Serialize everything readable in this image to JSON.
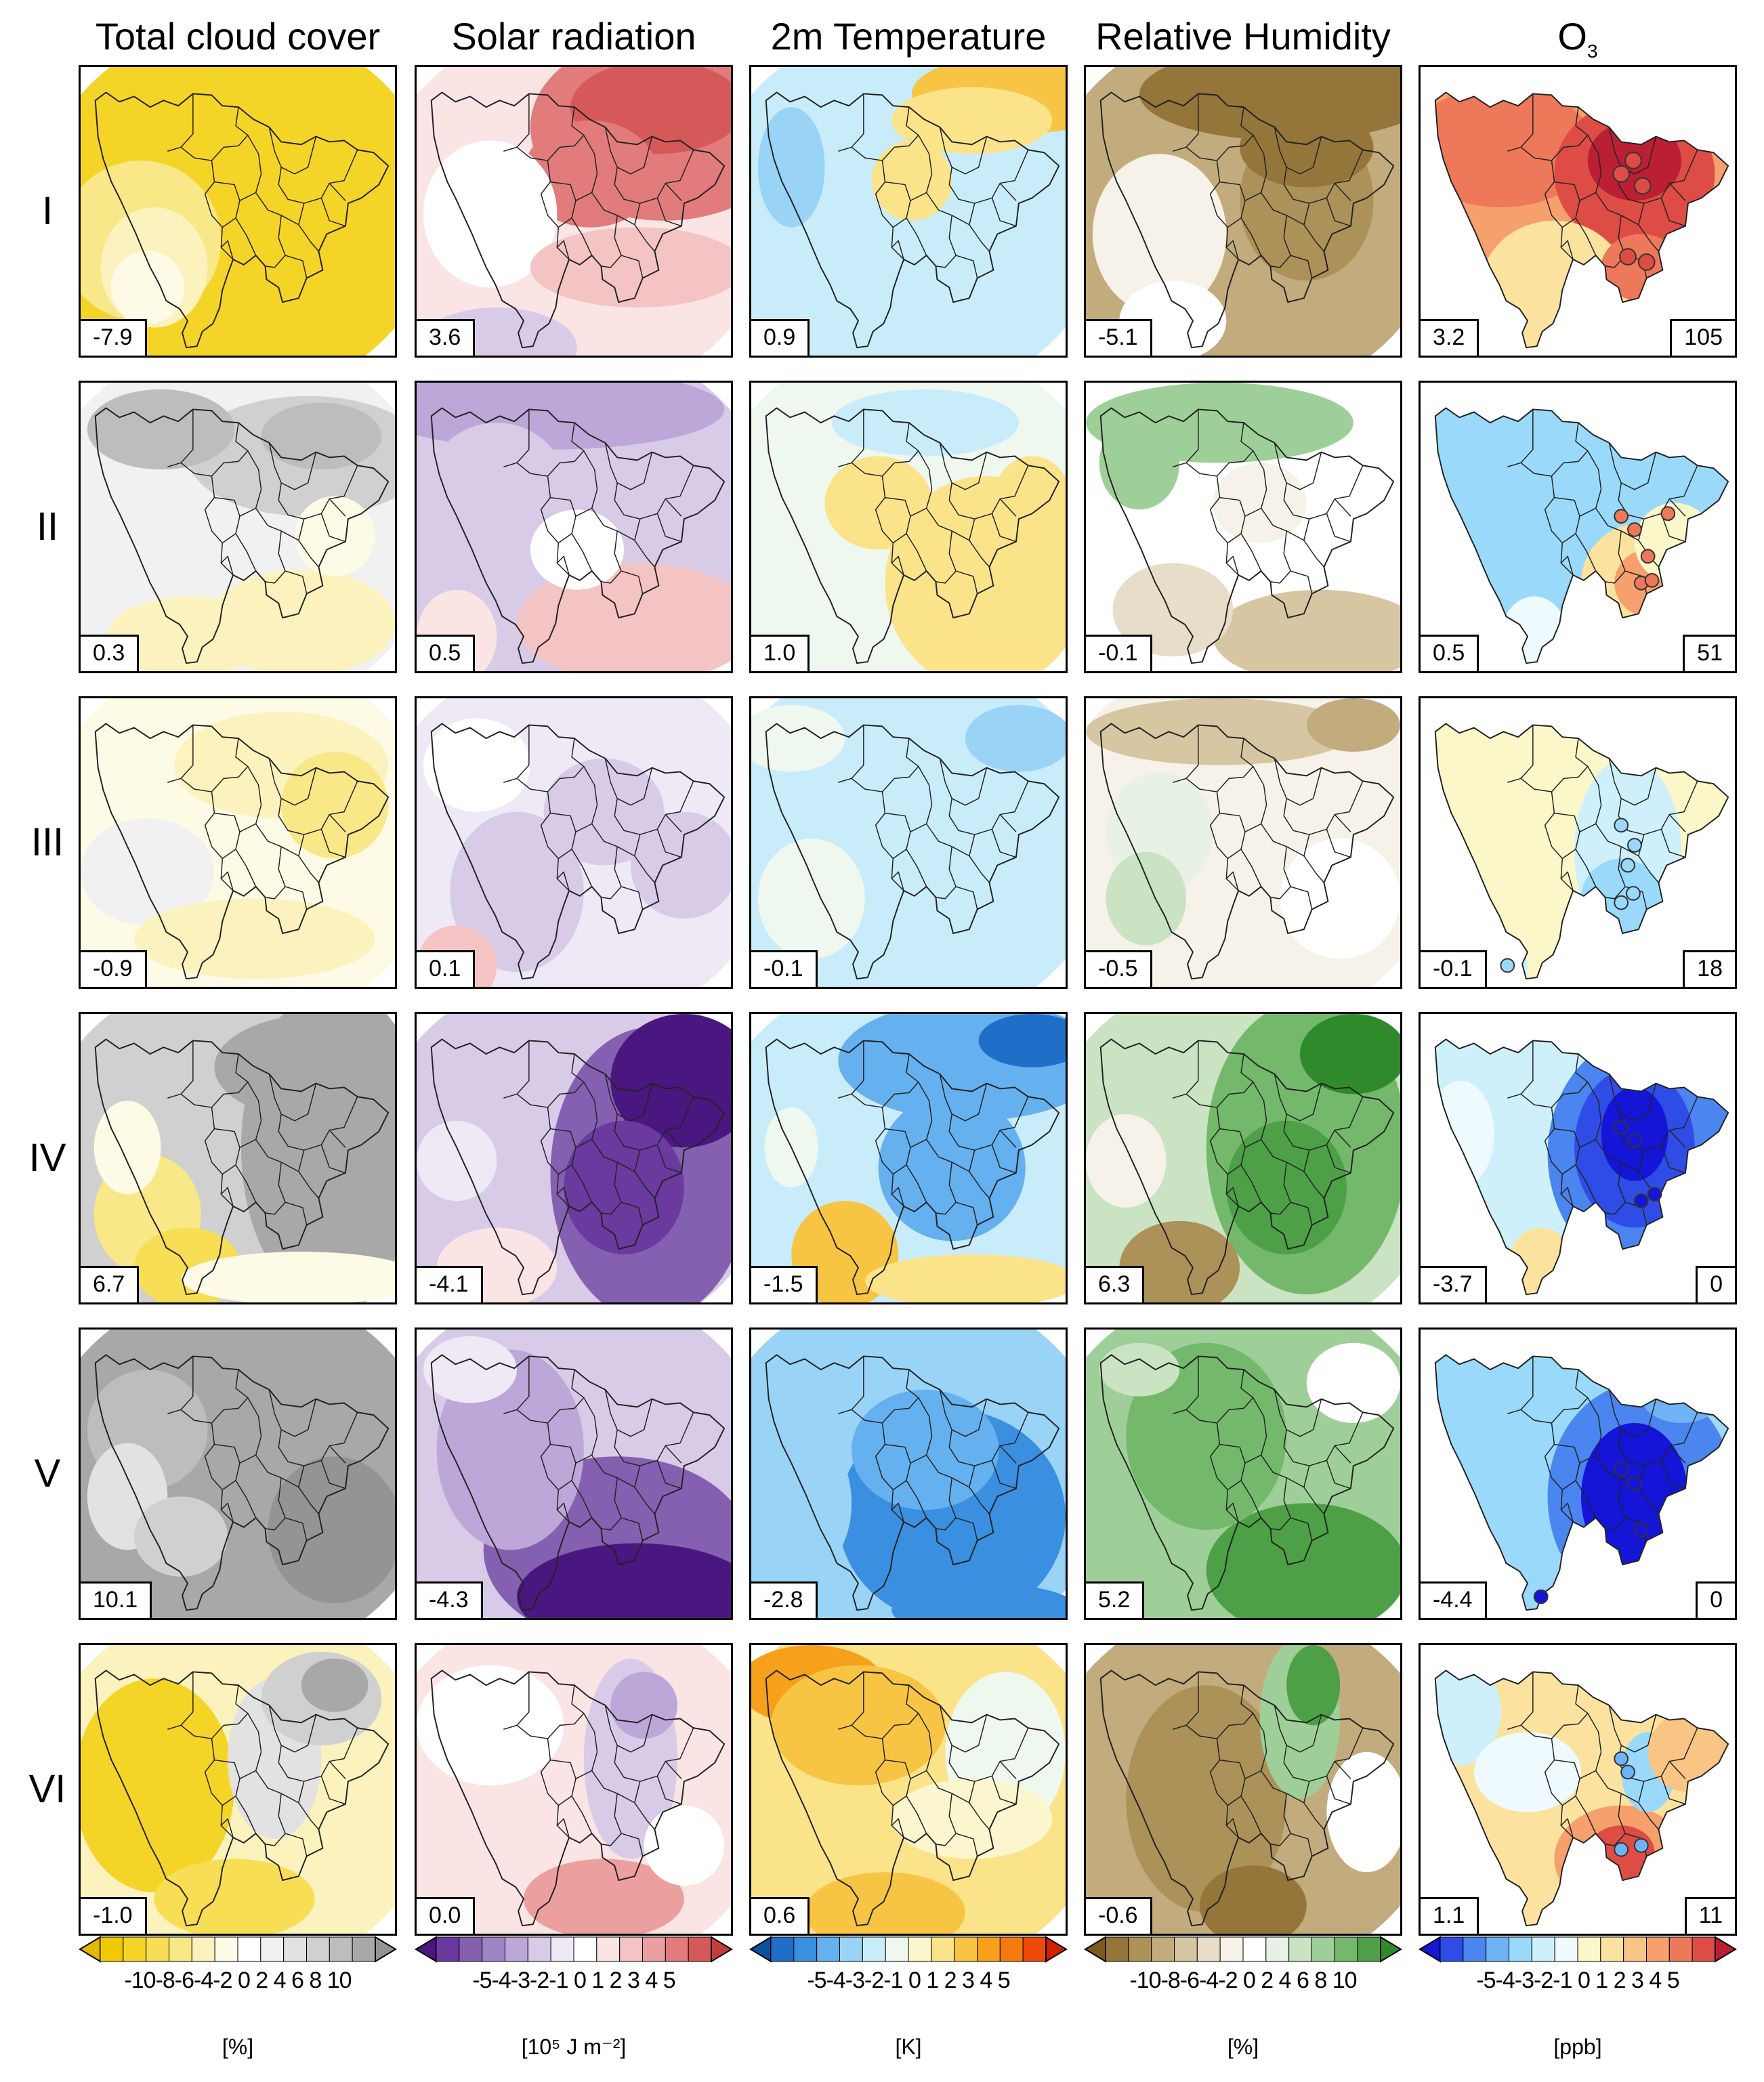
{
  "columns": [
    {
      "id": "tcc",
      "title": "Total cloud cover",
      "title_sub": "",
      "unit": "[%]",
      "ticks": "-10-8-6-4-2 0 2 4 6 8 10",
      "colors": [
        "#e6b800",
        "#f2c900",
        "#f5d428",
        "#f7de55",
        "#f9e888",
        "#fbf2bd",
        "#fdfae6",
        "#ffffff",
        "#f1f1f1",
        "#e2e2e2",
        "#d0d0d0",
        "#bdbdbd",
        "#a8a8a8",
        "#949494"
      ]
    },
    {
      "id": "ssr",
      "title": "Solar radiation",
      "title_sub": "",
      "unit": "[10⁵ J m⁻²]",
      "ticks": "-5-4-3-2-1 0 1 2 3 4 5",
      "colors": [
        "#4a1780",
        "#6a3a9e",
        "#8560b0",
        "#a083c4",
        "#bca7d8",
        "#d7cbe8",
        "#eee9f5",
        "#ffffff",
        "#fbe4e4",
        "#f4c3c3",
        "#ec9f9f",
        "#e27b7b",
        "#d65959",
        "#c43c3c"
      ]
    },
    {
      "id": "t2m",
      "title": "2m Temperature",
      "title_sub": "",
      "unit": "[K]",
      "ticks": "-5-4-3-2-1 0 1 2 3 4 5",
      "colors": [
        "#08519c",
        "#1f6fc8",
        "#3a8fe0",
        "#65b0ee",
        "#99d3f6",
        "#c9ecfa",
        "#eef8ef",
        "#fbf6cd",
        "#fbe38a",
        "#f8c443",
        "#f7a01c",
        "#f57b10",
        "#ee4a0a",
        "#d42004"
      ]
    },
    {
      "id": "rh",
      "title": "Relative Humidity",
      "title_sub": "",
      "unit": "[%]",
      "ticks": "-10-8-6-4-2 0 2 4 6 8 10",
      "colors": [
        "#7a5a1f",
        "#94753a",
        "#ac9159",
        "#c2ac7d",
        "#d6c6a2",
        "#e8ddc8",
        "#f6f2e9",
        "#ffffff",
        "#e8f2e4",
        "#c9e3c3",
        "#9fcf98",
        "#74b86c",
        "#4da046",
        "#2f8a2b"
      ]
    },
    {
      "id": "o3",
      "title": "O",
      "title_sub": "3",
      "unit": "[ppb]",
      "ticks": "-5-4-3-2-1 0 1 2 3 4 5",
      "colors": [
        "#1515d8",
        "#2f4de6",
        "#4a85f0",
        "#6fb3f6",
        "#9ad9fa",
        "#cdf0fb",
        "#eefafd",
        "#fbf7c8",
        "#fbe39f",
        "#f9c584",
        "#f5a06d",
        "#ee785a",
        "#dd4d45",
        "#bb1f33"
      ]
    }
  ],
  "rows": [
    {
      "label": "I",
      "values": [
        "-7.9",
        "3.6",
        "0.9",
        "-5.1",
        "3.2"
      ],
      "o3_right": "105"
    },
    {
      "label": "II",
      "values": [
        "0.3",
        "0.5",
        "1.0",
        "-0.1",
        "0.5"
      ],
      "o3_right": "51"
    },
    {
      "label": "III",
      "values": [
        "-0.9",
        "0.1",
        "-0.1",
        "-0.5",
        "-0.1"
      ],
      "o3_right": "18"
    },
    {
      "label": "IV",
      "values": [
        "6.7",
        "-4.1",
        "-1.5",
        "6.3",
        "-3.7"
      ],
      "o3_right": "0"
    },
    {
      "label": "V",
      "values": [
        "10.1",
        "-4.3",
        "-2.8",
        "5.2",
        "-4.4"
      ],
      "o3_right": "0"
    },
    {
      "label": "VI",
      "values": [
        "-1.0",
        "0.0",
        "0.6",
        "-0.6",
        "1.1"
      ],
      "o3_right": "11"
    }
  ]
}
